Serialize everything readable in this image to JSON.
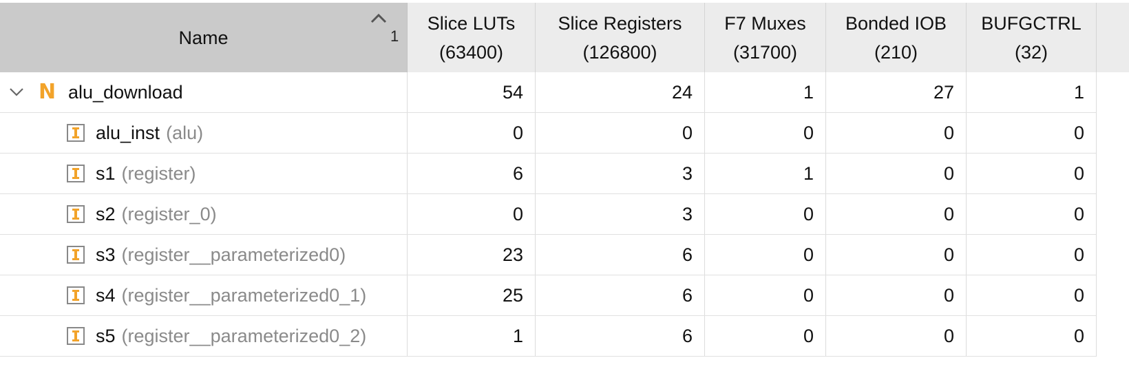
{
  "header": {
    "name_label": "Name",
    "sort_index": "1",
    "columns": [
      {
        "title": "Slice LUTs",
        "total": "(63400)"
      },
      {
        "title": "Slice Registers",
        "total": "(126800)"
      },
      {
        "title": "F7 Muxes",
        "total": "(31700)"
      },
      {
        "title": "Bonded IOB",
        "total": "(210)"
      },
      {
        "title": "BUFGCTRL",
        "total": "(32)"
      }
    ]
  },
  "rows": [
    {
      "name": "alu_download",
      "module": "",
      "icon": "netlist-top-icon",
      "expanded": true,
      "values": [
        "54",
        "24",
        "1",
        "27",
        "1"
      ]
    },
    {
      "name": "alu_inst",
      "module": "(alu)",
      "icon": "instance-icon",
      "values": [
        "0",
        "0",
        "0",
        "0",
        "0"
      ]
    },
    {
      "name": "s1",
      "module": "(register)",
      "icon": "instance-icon",
      "values": [
        "6",
        "3",
        "1",
        "0",
        "0"
      ]
    },
    {
      "name": "s2",
      "module": "(register_0)",
      "icon": "instance-icon",
      "values": [
        "0",
        "3",
        "0",
        "0",
        "0"
      ]
    },
    {
      "name": "s3",
      "module": "(register__parameterized0)",
      "icon": "instance-icon",
      "values": [
        "23",
        "6",
        "0",
        "0",
        "0"
      ]
    },
    {
      "name": "s4",
      "module": "(register__parameterized0_1)",
      "icon": "instance-icon",
      "values": [
        "25",
        "6",
        "0",
        "0",
        "0"
      ]
    },
    {
      "name": "s5",
      "module": "(register__parameterized0_2)",
      "icon": "instance-icon",
      "values": [
        "1",
        "6",
        "0",
        "0",
        "0"
      ]
    }
  ],
  "colors": {
    "accent": "#f2a32a",
    "header_bg": "#ececec",
    "sorted_header_bg": "#cacaca",
    "module_text": "#8a8a8a"
  }
}
